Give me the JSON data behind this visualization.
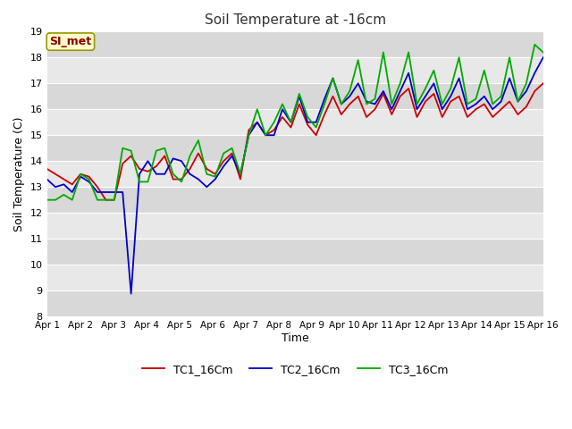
{
  "title": "Soil Temperature at -16cm",
  "xlabel": "Time",
  "ylabel": "Soil Temperature (C)",
  "ylim": [
    8.0,
    19.0
  ],
  "yticks": [
    8.0,
    9.0,
    10.0,
    11.0,
    12.0,
    13.0,
    14.0,
    15.0,
    16.0,
    17.0,
    18.0,
    19.0
  ],
  "xtick_labels": [
    "Apr 1",
    "Apr 2",
    "Apr 3",
    "Apr 4",
    "Apr 5",
    "Apr 6",
    "Apr 7",
    "Apr 8",
    "Apr 9",
    "Apr 10",
    "Apr 11",
    "Apr 12",
    "Apr 13",
    "Apr 14",
    "Apr 15",
    "Apr 16"
  ],
  "watermark": "SI_met",
  "legend": [
    "TC1_16Cm",
    "TC2_16Cm",
    "TC3_16Cm"
  ],
  "line_colors": [
    "#cc0000",
    "#0000cc",
    "#00aa00"
  ],
  "fig_bg_color": "#ffffff",
  "plot_bg_color": "#e8e8e8",
  "linewidth": 1.3,
  "TC1": [
    13.7,
    13.5,
    13.3,
    13.1,
    13.5,
    13.4,
    13.0,
    12.5,
    12.5,
    13.9,
    14.2,
    13.7,
    13.6,
    13.8,
    14.2,
    13.3,
    13.3,
    13.7,
    14.3,
    13.7,
    13.5,
    14.0,
    14.3,
    13.3,
    15.2,
    15.5,
    15.0,
    15.2,
    15.7,
    15.3,
    16.2,
    15.4,
    15.0,
    15.8,
    16.5,
    15.8,
    16.2,
    16.5,
    15.7,
    16.0,
    16.6,
    15.8,
    16.5,
    16.8,
    15.7,
    16.3,
    16.6,
    15.7,
    16.3,
    16.5,
    15.7,
    16.0,
    16.2,
    15.7,
    16.0,
    16.3,
    15.8,
    16.1,
    16.7,
    17.0
  ],
  "TC2": [
    13.3,
    13.0,
    13.1,
    12.8,
    13.4,
    13.2,
    12.8,
    12.8,
    12.8,
    12.8,
    8.88,
    13.5,
    14.0,
    13.5,
    13.5,
    14.1,
    14.0,
    13.5,
    13.3,
    13.0,
    13.3,
    13.8,
    14.2,
    13.5,
    15.0,
    15.5,
    15.0,
    15.0,
    16.0,
    15.5,
    16.5,
    15.5,
    15.5,
    16.4,
    17.2,
    16.2,
    16.5,
    17.0,
    16.3,
    16.2,
    16.7,
    16.0,
    16.7,
    17.4,
    16.0,
    16.5,
    17.0,
    16.0,
    16.5,
    17.2,
    16.0,
    16.2,
    16.5,
    16.0,
    16.3,
    17.2,
    16.3,
    16.7,
    17.4,
    18.0
  ],
  "TC3": [
    12.5,
    12.5,
    12.7,
    12.5,
    13.5,
    13.3,
    12.5,
    12.5,
    12.5,
    14.5,
    14.4,
    13.2,
    13.2,
    14.4,
    14.5,
    13.5,
    13.2,
    14.2,
    14.8,
    13.5,
    13.4,
    14.3,
    14.5,
    13.5,
    15.0,
    16.0,
    15.0,
    15.5,
    16.2,
    15.5,
    16.6,
    15.7,
    15.3,
    16.2,
    17.2,
    16.2,
    16.7,
    17.9,
    16.2,
    16.4,
    18.2,
    16.2,
    17.0,
    18.2,
    16.2,
    16.8,
    17.5,
    16.2,
    16.8,
    18.0,
    16.2,
    16.4,
    17.5,
    16.2,
    16.5,
    18.0,
    16.3,
    17.0,
    18.5,
    18.2
  ]
}
